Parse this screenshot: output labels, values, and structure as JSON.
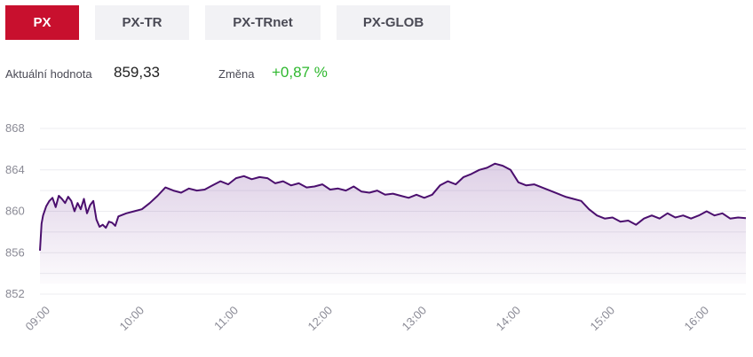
{
  "tabs": [
    {
      "label": "PX",
      "active": true
    },
    {
      "label": "PX-TR",
      "active": false
    },
    {
      "label": "PX-TRnet",
      "active": false
    },
    {
      "label": "PX-GLOB",
      "active": false
    }
  ],
  "stats": {
    "current_label": "Aktuální hodnota",
    "current_value": "859,33",
    "change_label": "Změna",
    "change_value": "+0,87 %"
  },
  "colors": {
    "accent": "#c8102e",
    "line": "#4b0f6e",
    "positive": "#2eb82e"
  },
  "chart_data": {
    "type": "area",
    "title": "",
    "xlabel": "",
    "ylabel": "",
    "ylim": [
      850,
      870
    ],
    "yticks": [
      852,
      856,
      860,
      864,
      868
    ],
    "xticks": [
      "09:00",
      "10:00",
      "11:00",
      "12:00",
      "13:00",
      "14:00",
      "15:00",
      "16:00"
    ],
    "xlim": [
      "09:00",
      "16:30"
    ],
    "grid": true,
    "legend": "none",
    "series": [
      {
        "x": [
          "09:00",
          "09:01",
          "09:02",
          "09:04",
          "09:06",
          "09:08",
          "09:10",
          "09:12",
          "09:14",
          "09:16",
          "09:18",
          "09:20",
          "09:22",
          "09:24",
          "09:26",
          "09:28",
          "09:30",
          "09:32",
          "09:34",
          "09:36",
          "09:38",
          "09:40",
          "09:42",
          "09:44",
          "09:46",
          "09:48",
          "09:50",
          "09:55",
          "10:00",
          "10:05",
          "10:10",
          "10:15",
          "10:20",
          "10:25",
          "10:30",
          "10:35",
          "10:40",
          "10:45",
          "10:50",
          "10:55",
          "11:00",
          "11:05",
          "11:10",
          "11:15",
          "11:20",
          "11:25",
          "11:30",
          "11:35",
          "11:40",
          "11:45",
          "11:50",
          "11:55",
          "12:00",
          "12:05",
          "12:10",
          "12:15",
          "12:20",
          "12:25",
          "12:30",
          "12:35",
          "12:40",
          "12:45",
          "12:50",
          "12:55",
          "13:00",
          "13:05",
          "13:10",
          "13:15",
          "13:20",
          "13:25",
          "13:30",
          "13:35",
          "13:40",
          "13:45",
          "13:50",
          "13:55",
          "14:00",
          "14:05",
          "14:10",
          "14:15",
          "14:20",
          "14:25",
          "14:30",
          "14:35",
          "14:40",
          "14:45",
          "14:50",
          "14:55",
          "15:00",
          "15:05",
          "15:10",
          "15:15",
          "15:20",
          "15:25",
          "15:30",
          "15:35",
          "15:40",
          "15:45",
          "15:50",
          "15:55",
          "16:00",
          "16:05",
          "16:10",
          "16:15",
          "16:20",
          "16:25",
          "16:30"
        ],
        "values": [
          856.2,
          858.8,
          859.6,
          860.5,
          861.0,
          861.3,
          860.4,
          861.5,
          861.2,
          860.8,
          861.4,
          861.0,
          860.0,
          860.8,
          860.2,
          861.2,
          859.8,
          860.6,
          861.0,
          859.2,
          858.5,
          858.7,
          858.4,
          859.0,
          858.9,
          858.6,
          859.5,
          859.8,
          860.0,
          860.2,
          860.8,
          861.5,
          862.3,
          862.0,
          861.8,
          862.2,
          862.0,
          862.1,
          862.5,
          862.9,
          862.6,
          863.2,
          863.4,
          863.1,
          863.3,
          863.2,
          862.7,
          862.9,
          862.5,
          862.7,
          862.3,
          862.4,
          862.6,
          862.1,
          862.2,
          862.0,
          862.4,
          861.9,
          861.8,
          862.0,
          861.6,
          861.7,
          861.5,
          861.3,
          861.6,
          861.3,
          861.6,
          862.5,
          862.9,
          862.6,
          863.3,
          863.6,
          864.0,
          864.2,
          864.6,
          864.4,
          864.0,
          862.8,
          862.5,
          862.6,
          862.3,
          862.0,
          861.7,
          861.4,
          861.2,
          861.0,
          860.2,
          859.6,
          859.3,
          859.4,
          859.0,
          859.1,
          858.7,
          859.3,
          859.6,
          859.3,
          859.8,
          859.4,
          859.6,
          859.3,
          859.6,
          860.0,
          859.6,
          859.8,
          859.3,
          859.4,
          859.33
        ]
      }
    ]
  }
}
